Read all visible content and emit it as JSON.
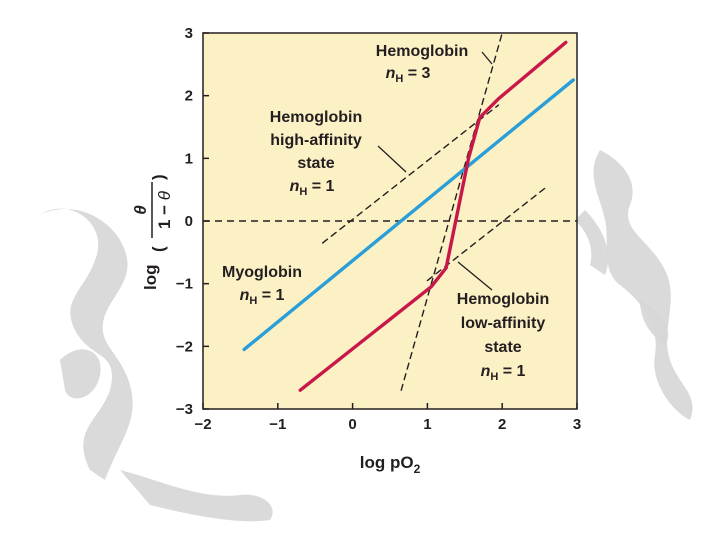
{
  "chart_data": {
    "type": "line",
    "title": "",
    "xlabel": "log pO2",
    "ylabel": "log (θ / (1 − θ))",
    "xlim": [
      -2,
      3
    ],
    "ylim": [
      -3,
      3
    ],
    "x_ticks": [
      "−2",
      "−1",
      "0",
      "1",
      "2",
      "3"
    ],
    "y_ticks": [
      "3",
      "2",
      "1",
      "0",
      "−1",
      "−2",
      "−3"
    ],
    "grid": false,
    "reference_line": {
      "y": 0,
      "style": "dashed"
    },
    "series": [
      {
        "name": "Myoglobin",
        "style": "solid",
        "color": "#2a9ed8",
        "x": [
          -1.45,
          2.95
        ],
        "y": [
          -2.05,
          2.25
        ]
      },
      {
        "name": "Hemoglobin",
        "style": "solid",
        "color": "#c8184a",
        "x": [
          -0.7,
          1.05,
          1.25,
          1.55,
          1.7,
          1.95,
          2.85
        ],
        "y": [
          -2.7,
          -1.05,
          -0.75,
          1.0,
          1.65,
          1.95,
          2.85
        ]
      },
      {
        "name": "Hemoglobin high-affinity state",
        "style": "dashed",
        "color": "#231f20",
        "x": [
          -0.4,
          1.95
        ],
        "y": [
          -0.35,
          1.85
        ]
      },
      {
        "name": "Hemoglobin low-affinity state",
        "style": "dashed",
        "color": "#231f20",
        "x": [
          1.0,
          2.6
        ],
        "y": [
          -0.95,
          0.55
        ]
      },
      {
        "name": "Hemoglobin nH = 3",
        "style": "dashed",
        "color": "#231f20",
        "x": [
          0.65,
          2.0
        ],
        "y": [
          -2.7,
          3.0
        ]
      }
    ],
    "annotations": [
      {
        "lines": [
          "Hemoglobin",
          "nH = 3"
        ]
      },
      {
        "lines": [
          "Hemoglobin",
          "high-affinity",
          "state",
          "nH = 1"
        ]
      },
      {
        "lines": [
          "Myoglobin",
          "nH = 1"
        ]
      },
      {
        "lines": [
          "Hemoglobin",
          "low-affinity",
          "state",
          "nH = 1"
        ]
      }
    ],
    "plot_background": "#fcf0c5"
  }
}
